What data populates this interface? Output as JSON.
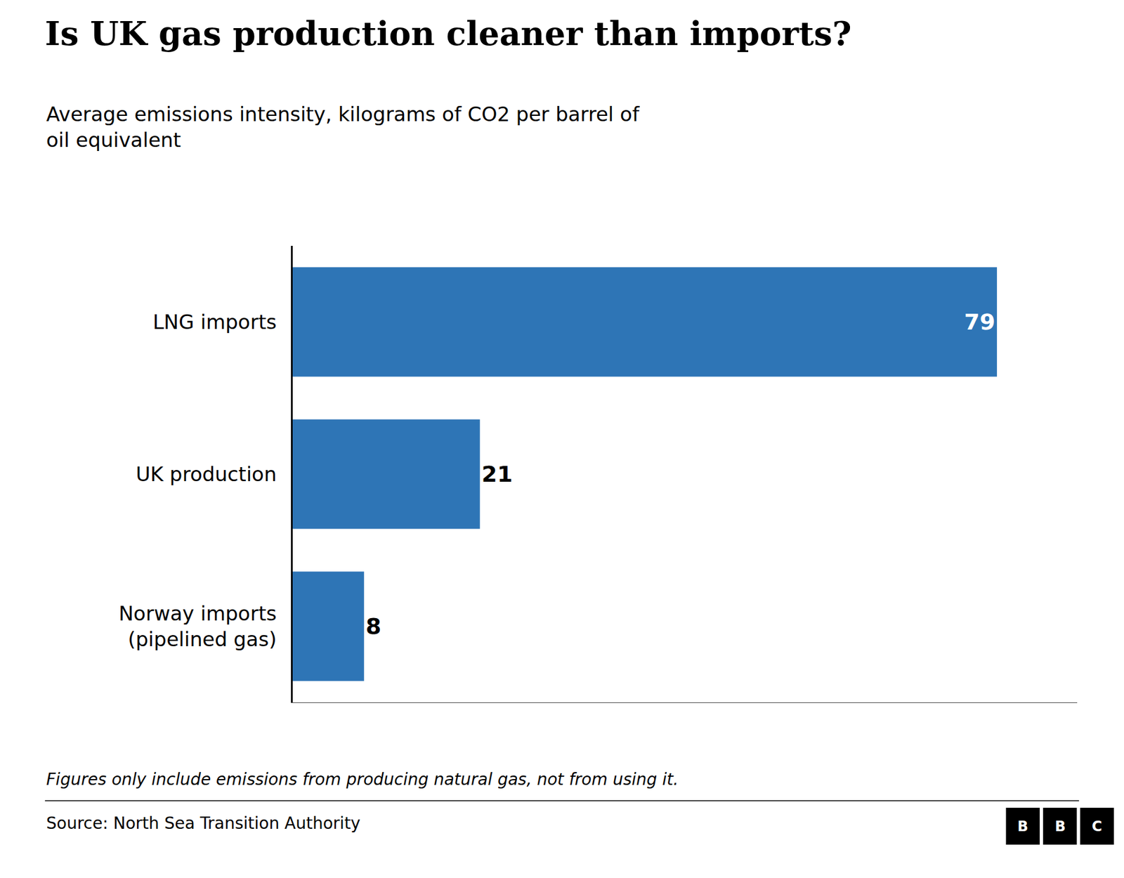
{
  "chart_data": {
    "type": "bar",
    "orientation": "horizontal",
    "title": "Is UK gas production cleaner than imports?",
    "subtitle": "Average emissions intensity, kilograms of CO2 per barrel of\noil equivalent",
    "categories": [
      "LNG imports",
      "UK production",
      "Norway imports\n(pipelined gas)"
    ],
    "values": [
      79,
      21,
      8
    ],
    "color": "#2e75b6",
    "data_labels": true,
    "xlim": [
      0,
      88
    ],
    "xticks": [],
    "tick_labels": "y",
    "grid": false,
    "footnote": "Figures only include emissions from producing natural gas, not from using it.",
    "source": "Source: North Sea Transition Authority",
    "logo": [
      "B",
      "B",
      "C"
    ]
  }
}
